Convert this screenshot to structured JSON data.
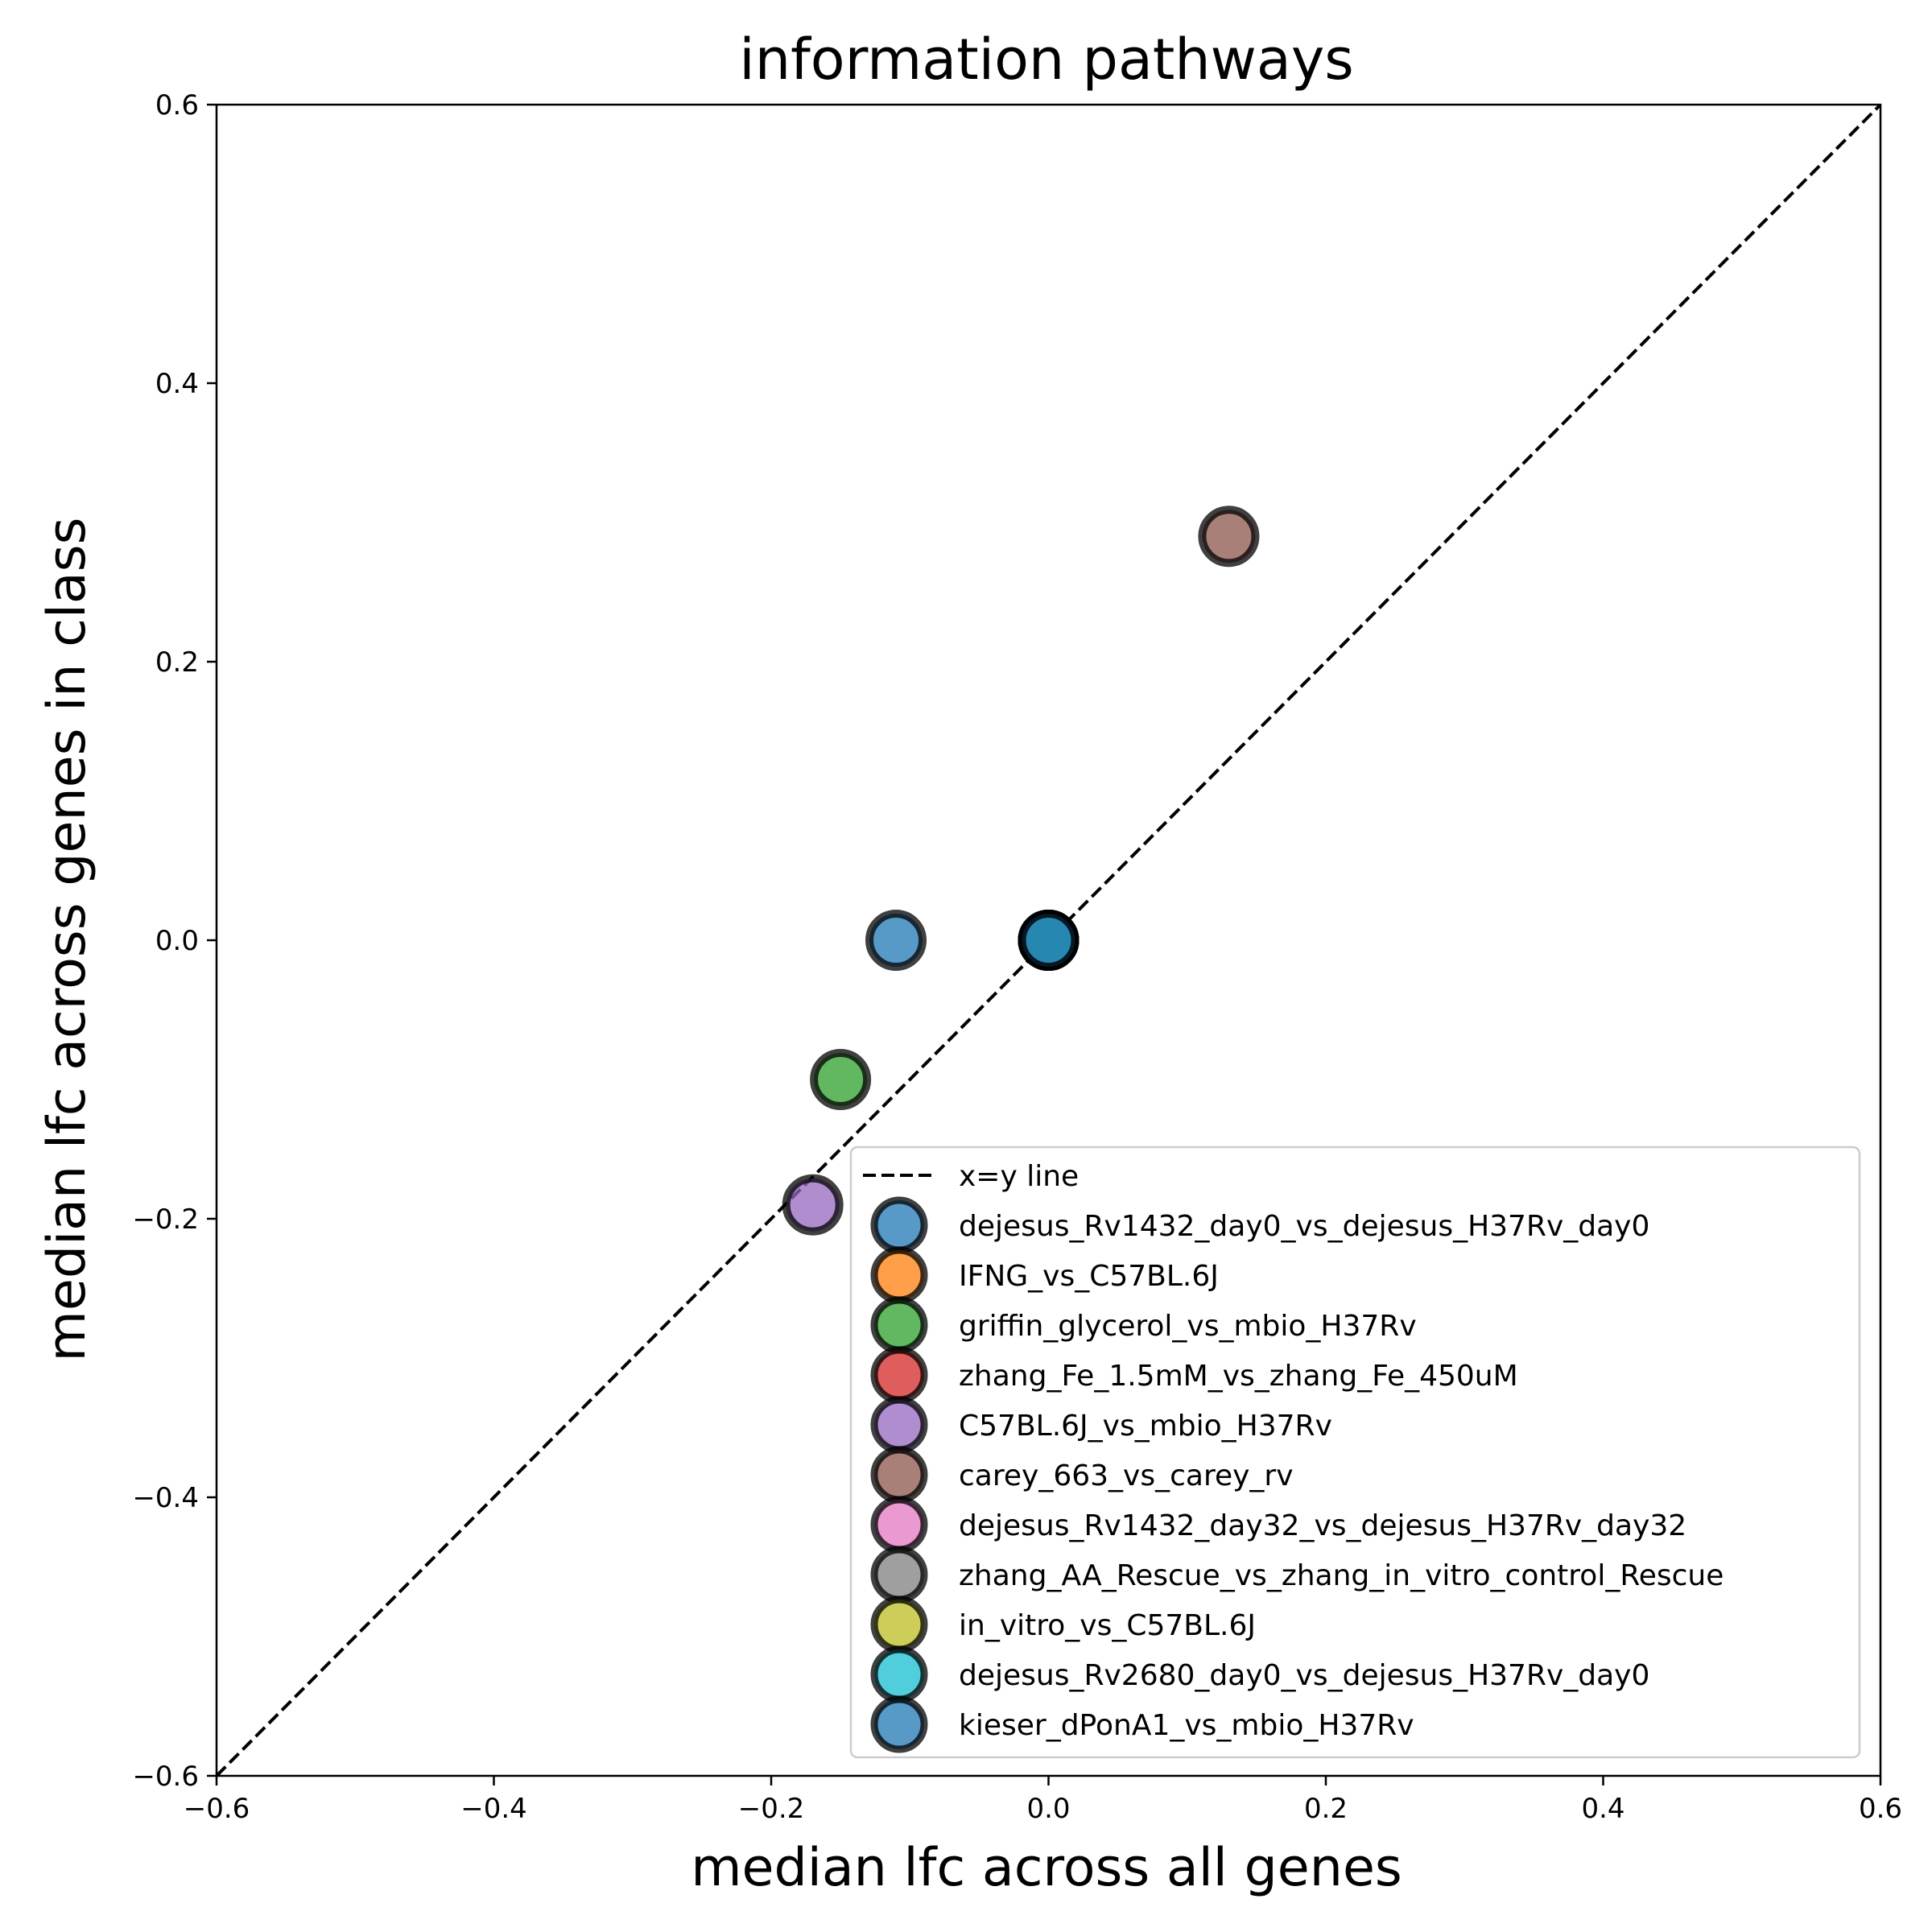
{
  "chart_data": {
    "type": "scatter",
    "title": "information pathways",
    "xlabel": "median lfc across all genes",
    "ylabel": "median lfc across genes in class",
    "xlim": [
      -0.6,
      0.6
    ],
    "ylim": [
      -0.6,
      0.6
    ],
    "xticks": [
      -0.6,
      -0.4,
      -0.2,
      0.0,
      0.2,
      0.4,
      0.6
    ],
    "yticks": [
      -0.6,
      -0.4,
      -0.2,
      0.0,
      0.2,
      0.4,
      0.6
    ],
    "xtick_labels": [
      "−0.6",
      "−0.4",
      "−0.2",
      "0.0",
      "0.2",
      "0.4",
      "0.6"
    ],
    "ytick_labels": [
      "−0.6",
      "−0.4",
      "−0.2",
      "0.0",
      "0.2",
      "0.4",
      "0.6"
    ],
    "grid": false,
    "legend_position": "bottom-right",
    "reference_line": {
      "label": "x=y line",
      "style": "dashed",
      "color": "#000000"
    },
    "series": [
      {
        "name": "dejesus_Rv1432_day0_vs_dejesus_H37Rv_day0",
        "color": "#1f77b4",
        "x": -0.11,
        "y": 0.0
      },
      {
        "name": "IFNG_vs_C57BL.6J",
        "color": "#ff7f0e",
        "x": 0.0,
        "y": 0.0
      },
      {
        "name": "griffin_glycerol_vs_mbio_H37Rv",
        "color": "#2ca02c",
        "x": -0.15,
        "y": -0.1
      },
      {
        "name": "zhang_Fe_1.5mM_vs_zhang_Fe_450uM",
        "color": "#d62728",
        "x": 0.0,
        "y": 0.0
      },
      {
        "name": "C57BL.6J_vs_mbio_H37Rv",
        "color": "#9467bd",
        "x": -0.17,
        "y": -0.19
      },
      {
        "name": "carey_663_vs_carey_rv",
        "color": "#8c564b",
        "x": 0.13,
        "y": 0.29
      },
      {
        "name": "dejesus_Rv1432_day32_vs_dejesus_H37Rv_day32",
        "color": "#e377c2",
        "x": 0.0,
        "y": 0.0
      },
      {
        "name": "zhang_AA_Rescue_vs_zhang_in_vitro_control_Rescue",
        "color": "#7f7f7f",
        "x": 0.0,
        "y": 0.0
      },
      {
        "name": "in_vitro_vs_C57BL.6J",
        "color": "#bcbd22",
        "x": 0.0,
        "y": 0.0
      },
      {
        "name": "dejesus_Rv2680_day0_vs_dejesus_H37Rv_day0",
        "color": "#17becf",
        "x": 0.0,
        "y": 0.0
      },
      {
        "name": "kieser_dPonA1_vs_mbio_H37Rv",
        "color": "#1f77b4",
        "x": 0.0,
        "y": 0.0
      }
    ]
  }
}
